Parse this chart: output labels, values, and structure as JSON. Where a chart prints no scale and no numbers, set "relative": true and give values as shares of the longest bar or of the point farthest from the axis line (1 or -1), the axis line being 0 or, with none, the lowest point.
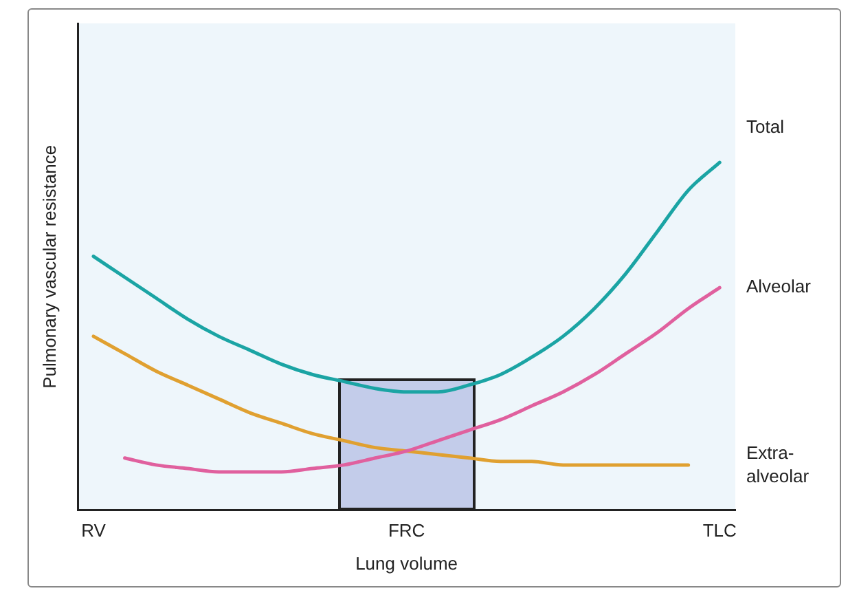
{
  "chart_data": {
    "type": "line",
    "relative": true,
    "xlabel": "Lung volume",
    "ylabel": "Pulmonary vascular resistance",
    "categories": [
      "RV",
      null,
      null,
      null,
      null,
      null,
      null,
      null,
      null,
      null,
      "FRC",
      null,
      null,
      null,
      null,
      null,
      null,
      null,
      null,
      null,
      "TLC"
    ],
    "series": [
      {
        "name": "Total",
        "color": "#1ba4a4",
        "values": [
          0.73,
          0.67,
          0.61,
          0.55,
          0.5,
          0.46,
          0.42,
          0.39,
          0.37,
          0.35,
          0.34,
          0.34,
          0.36,
          0.39,
          0.44,
          0.5,
          0.58,
          0.68,
          0.8,
          0.92,
          1
        ]
      },
      {
        "name": "Alveolar",
        "color": "#e0609e",
        "values": [
          null,
          0.15,
          0.13,
          0.12,
          0.11,
          0.11,
          0.11,
          0.12,
          0.13,
          0.15,
          0.17,
          0.2,
          0.23,
          0.26,
          0.3,
          0.34,
          0.39,
          0.45,
          0.51,
          0.58,
          0.64
        ]
      },
      {
        "name": "Extra-alveolar",
        "color": "#e0a030",
        "values": [
          0.5,
          0.45,
          0.4,
          0.36,
          0.32,
          0.28,
          0.25,
          0.22,
          0.2,
          0.18,
          0.17,
          0.16,
          0.15,
          0.14,
          0.14,
          0.13,
          0.13,
          0.13,
          0.13,
          0.13,
          null
        ]
      }
    ],
    "legend": false,
    "marker": "none",
    "line_style": "solid"
  }
}
